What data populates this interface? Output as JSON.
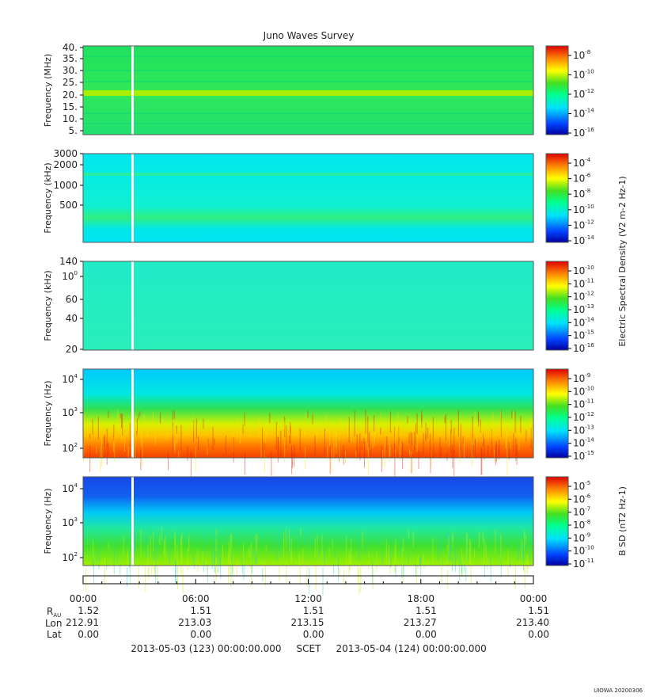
{
  "chart_data": {
    "type": "heatmap",
    "title": "Juno Waves Survey",
    "panels": [
      {
        "ylabel": "Frequency (MHz)",
        "yticks": [
          "40.",
          "35.",
          "30.",
          "25.",
          "20.",
          "15.",
          "10.",
          "5."
        ],
        "cbar_ticks": [
          "10-8",
          "10-10",
          "10-12",
          "10-14",
          "10-16"
        ],
        "cbar_label": ""
      },
      {
        "ylabel": "Frequency (kHz)",
        "yticks": [
          "3000",
          "2000",
          "1000",
          "500"
        ],
        "cbar_ticks": [
          "10-4",
          "10-6",
          "10-8",
          "10-10",
          "10-12",
          "10-14"
        ],
        "cbar_label": "Electric Spectral Density (V2 m-2 Hz-1)"
      },
      {
        "ylabel": "Frequency (kHz)",
        "yticks": [
          "140",
          "100",
          "60",
          "40",
          "20"
        ],
        "cbar_ticks": [
          "10-10",
          "10-11",
          "10-12",
          "10-13",
          "10-14",
          "10-15",
          "10-16"
        ],
        "cbar_label": ""
      },
      {
        "ylabel": "Frequency (Hz)",
        "yticks": [
          "104",
          "103",
          "102"
        ],
        "cbar_ticks": [
          "10-9",
          "10-10",
          "10-11",
          "10-12",
          "10-13",
          "10-14",
          "10-15"
        ],
        "cbar_label": ""
      },
      {
        "ylabel": "Frequency (Hz)",
        "yticks": [
          "104",
          "103",
          "102"
        ],
        "cbar_ticks": [
          "10-5",
          "10-6",
          "10-7",
          "10-8",
          "10-9",
          "10-10",
          "10-11"
        ],
        "cbar_label": "B SD (nT2 Hz-1)"
      }
    ],
    "x_ticks": [
      "00:00",
      "06:00",
      "12:00",
      "18:00",
      "00:00"
    ],
    "ephemeris": {
      "r_label": "R",
      "r_sub": "AU",
      "lon_label": "Lon",
      "lat_label": "Lat",
      "r_values": [
        "1.52",
        "1.51",
        "1.51",
        "1.51",
        "1.51"
      ],
      "lon_values": [
        "212.91",
        "213.03",
        "213.15",
        "213.27",
        "213.40"
      ],
      "lat_values": [
        "0.00",
        "0.00",
        "0.00",
        "0.00",
        "0.00"
      ]
    },
    "time_range_text": "2013-05-03 (123) 00:00:00.000     SCET     2013-05-04 (124) 00:00:00.000",
    "footer": "UIOWA 20200306"
  }
}
